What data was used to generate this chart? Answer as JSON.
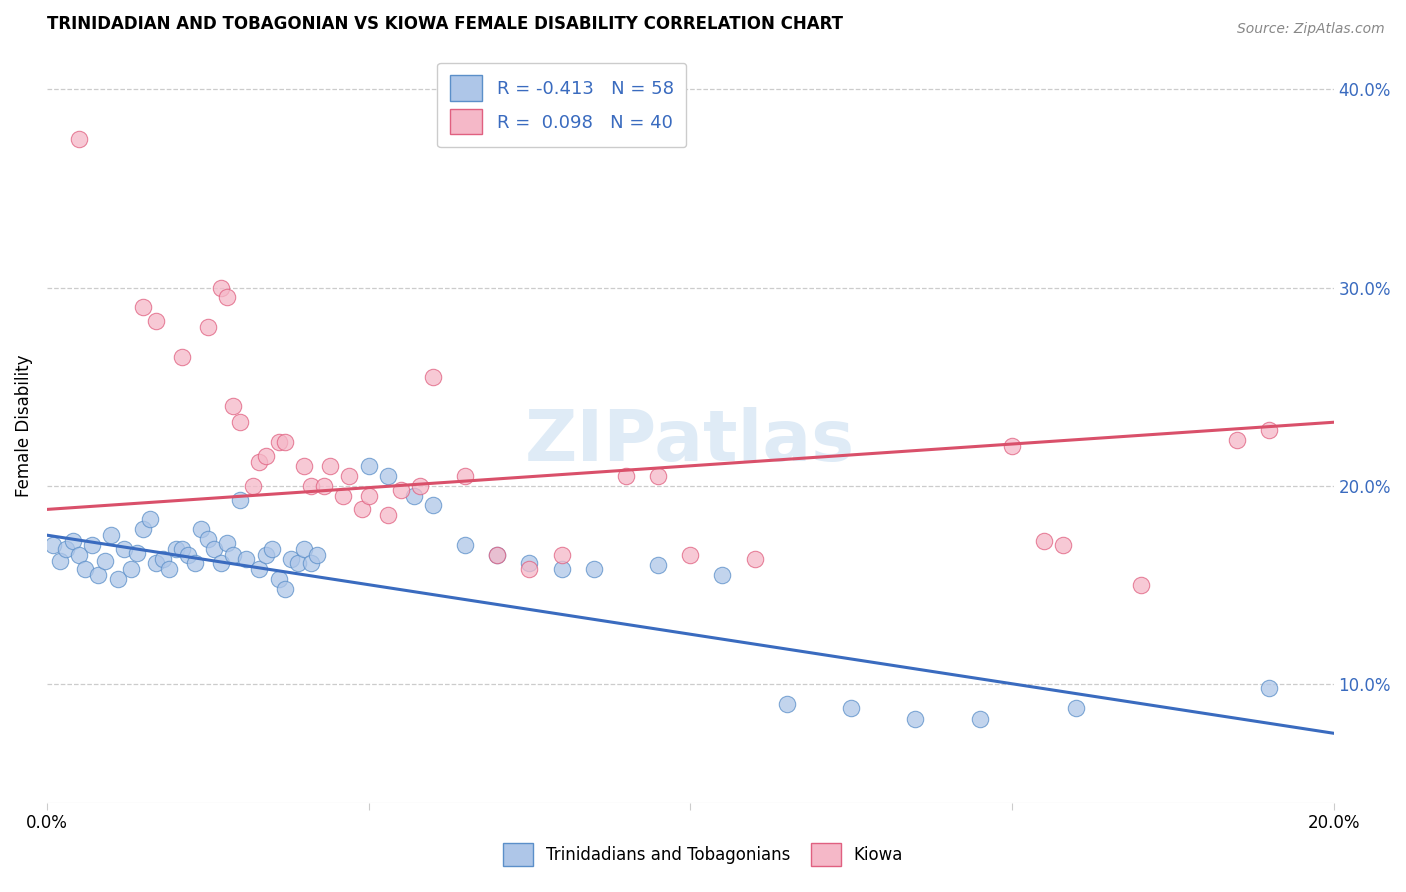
{
  "title": "TRINIDADIAN AND TOBAGONIAN VS KIOWA FEMALE DISABILITY CORRELATION CHART",
  "source": "Source: ZipAtlas.com",
  "ylabel": "Female Disability",
  "right_yticks": [
    "10.0%",
    "20.0%",
    "30.0%",
    "40.0%"
  ],
  "right_ytick_vals": [
    0.1,
    0.2,
    0.3,
    0.4
  ],
  "xmin": 0.0,
  "xmax": 0.2,
  "ymin": 0.04,
  "ymax": 0.42,
  "blue_fill": "#aec6e8",
  "pink_fill": "#f5b8c8",
  "blue_edge": "#5b8fc9",
  "pink_edge": "#e06080",
  "blue_line_color": "#3a6bbf",
  "pink_line_color": "#d9506a",
  "watermark": "ZIPatlas",
  "trinidadian_scatter": [
    [
      0.001,
      0.17
    ],
    [
      0.002,
      0.162
    ],
    [
      0.003,
      0.168
    ],
    [
      0.004,
      0.172
    ],
    [
      0.005,
      0.165
    ],
    [
      0.006,
      0.158
    ],
    [
      0.007,
      0.17
    ],
    [
      0.008,
      0.155
    ],
    [
      0.009,
      0.162
    ],
    [
      0.01,
      0.175
    ],
    [
      0.011,
      0.153
    ],
    [
      0.012,
      0.168
    ],
    [
      0.013,
      0.158
    ],
    [
      0.014,
      0.166
    ],
    [
      0.015,
      0.178
    ],
    [
      0.016,
      0.183
    ],
    [
      0.017,
      0.161
    ],
    [
      0.018,
      0.163
    ],
    [
      0.019,
      0.158
    ],
    [
      0.02,
      0.168
    ],
    [
      0.021,
      0.168
    ],
    [
      0.022,
      0.165
    ],
    [
      0.023,
      0.161
    ],
    [
      0.024,
      0.178
    ],
    [
      0.025,
      0.173
    ],
    [
      0.026,
      0.168
    ],
    [
      0.027,
      0.161
    ],
    [
      0.028,
      0.171
    ],
    [
      0.029,
      0.165
    ],
    [
      0.03,
      0.193
    ],
    [
      0.031,
      0.163
    ],
    [
      0.033,
      0.158
    ],
    [
      0.034,
      0.165
    ],
    [
      0.035,
      0.168
    ],
    [
      0.036,
      0.153
    ],
    [
      0.037,
      0.148
    ],
    [
      0.038,
      0.163
    ],
    [
      0.039,
      0.161
    ],
    [
      0.04,
      0.168
    ],
    [
      0.041,
      0.161
    ],
    [
      0.042,
      0.165
    ],
    [
      0.05,
      0.21
    ],
    [
      0.053,
      0.205
    ],
    [
      0.057,
      0.195
    ],
    [
      0.06,
      0.19
    ],
    [
      0.065,
      0.17
    ],
    [
      0.07,
      0.165
    ],
    [
      0.075,
      0.161
    ],
    [
      0.08,
      0.158
    ],
    [
      0.085,
      0.158
    ],
    [
      0.095,
      0.16
    ],
    [
      0.105,
      0.155
    ],
    [
      0.115,
      0.09
    ],
    [
      0.125,
      0.088
    ],
    [
      0.135,
      0.082
    ],
    [
      0.145,
      0.082
    ],
    [
      0.16,
      0.088
    ],
    [
      0.19,
      0.098
    ]
  ],
  "kiowa_scatter": [
    [
      0.005,
      0.375
    ],
    [
      0.015,
      0.29
    ],
    [
      0.017,
      0.283
    ],
    [
      0.021,
      0.265
    ],
    [
      0.025,
      0.28
    ],
    [
      0.027,
      0.3
    ],
    [
      0.028,
      0.295
    ],
    [
      0.029,
      0.24
    ],
    [
      0.03,
      0.232
    ],
    [
      0.032,
      0.2
    ],
    [
      0.033,
      0.212
    ],
    [
      0.034,
      0.215
    ],
    [
      0.036,
      0.222
    ],
    [
      0.037,
      0.222
    ],
    [
      0.04,
      0.21
    ],
    [
      0.041,
      0.2
    ],
    [
      0.043,
      0.2
    ],
    [
      0.044,
      0.21
    ],
    [
      0.046,
      0.195
    ],
    [
      0.047,
      0.205
    ],
    [
      0.049,
      0.188
    ],
    [
      0.05,
      0.195
    ],
    [
      0.053,
      0.185
    ],
    [
      0.055,
      0.198
    ],
    [
      0.058,
      0.2
    ],
    [
      0.06,
      0.255
    ],
    [
      0.065,
      0.205
    ],
    [
      0.07,
      0.165
    ],
    [
      0.075,
      0.158
    ],
    [
      0.08,
      0.165
    ],
    [
      0.09,
      0.205
    ],
    [
      0.095,
      0.205
    ],
    [
      0.1,
      0.165
    ],
    [
      0.11,
      0.163
    ],
    [
      0.15,
      0.22
    ],
    [
      0.155,
      0.172
    ],
    [
      0.158,
      0.17
    ],
    [
      0.17,
      0.15
    ],
    [
      0.185,
      0.223
    ],
    [
      0.19,
      0.228
    ]
  ],
  "blue_line_x": [
    0.0,
    0.2
  ],
  "blue_line_y": [
    0.175,
    0.075
  ],
  "pink_line_x": [
    0.0,
    0.2
  ],
  "pink_line_y": [
    0.188,
    0.232
  ]
}
